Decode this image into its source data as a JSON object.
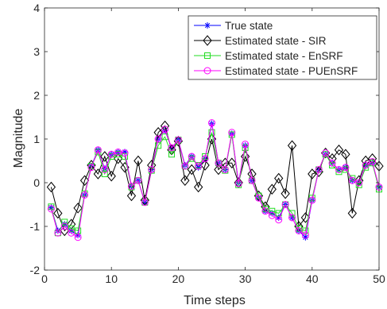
{
  "chart_data": {
    "type": "line",
    "xlabel": "Time steps",
    "ylabel": "Magnitude",
    "xlim": [
      0,
      50
    ],
    "ylim": [
      -2,
      4
    ],
    "xticks": [
      0,
      10,
      20,
      30,
      40,
      50
    ],
    "yticks": [
      -2,
      -1,
      0,
      1,
      2,
      3,
      4
    ],
    "grid": false,
    "legend_position": "top-right",
    "x": [
      1,
      2,
      3,
      4,
      5,
      6,
      7,
      8,
      9,
      10,
      11,
      12,
      13,
      14,
      15,
      16,
      17,
      18,
      19,
      20,
      21,
      22,
      23,
      24,
      25,
      26,
      27,
      28,
      29,
      30,
      31,
      32,
      33,
      34,
      35,
      36,
      37,
      38,
      39,
      40,
      41,
      42,
      43,
      44,
      45,
      46,
      47,
      48,
      49,
      50
    ],
    "series": [
      {
        "name": "True state",
        "color": "#0000ff",
        "marker": "asterisk",
        "values": [
          -0.57,
          -1.1,
          -0.95,
          -1.1,
          -1.2,
          -0.28,
          0.38,
          0.75,
          0.32,
          0.65,
          0.7,
          0.7,
          -0.08,
          0.05,
          -0.45,
          0.3,
          1.0,
          1.2,
          0.8,
          0.98,
          0.4,
          0.6,
          0.35,
          0.55,
          1.35,
          0.45,
          0.3,
          1.12,
          0.0,
          0.85,
          0.05,
          -0.35,
          -0.65,
          -0.7,
          -0.8,
          -0.5,
          -0.8,
          -1.1,
          -1.25,
          -0.4,
          0.3,
          0.65,
          0.45,
          0.3,
          0.35,
          0.05,
          0.0,
          0.4,
          0.45,
          -0.1
        ]
      },
      {
        "name": "Estimated state - SIR",
        "color": "#000000",
        "marker": "diamond",
        "values": [
          -0.1,
          -0.7,
          -1.1,
          -0.95,
          -0.58,
          0.05,
          0.4,
          0.2,
          0.6,
          0.15,
          0.55,
          0.35,
          -0.3,
          0.5,
          -0.4,
          0.4,
          1.15,
          1.3,
          0.75,
          0.95,
          0.05,
          0.3,
          -0.1,
          0.4,
          1.0,
          0.3,
          0.45,
          0.45,
          0.0,
          0.6,
          0.2,
          -0.3,
          -0.55,
          -0.15,
          0.1,
          -0.25,
          0.85,
          -1.0,
          -0.8,
          0.2,
          0.25,
          0.68,
          0.55,
          0.75,
          0.65,
          -0.7,
          0.05,
          0.5,
          0.55,
          0.38
        ]
      },
      {
        "name": "Estimated state - EnSRF",
        "color": "#22dd22",
        "marker": "square",
        "values": [
          -0.55,
          -1.15,
          -0.9,
          -1.05,
          -1.1,
          -0.25,
          0.38,
          0.7,
          0.2,
          0.6,
          0.65,
          0.6,
          -0.1,
          0.05,
          -0.45,
          0.28,
          0.85,
          1.05,
          0.65,
          0.98,
          0.38,
          0.55,
          0.4,
          0.6,
          1.15,
          0.45,
          0.28,
          1.1,
          -0.05,
          0.8,
          0.05,
          -0.3,
          -0.6,
          -0.65,
          -0.7,
          -0.5,
          -0.7,
          -1.05,
          -1.1,
          -0.35,
          0.3,
          0.65,
          0.4,
          0.25,
          0.3,
          0.1,
          -0.05,
          0.35,
          0.45,
          -0.15
        ]
      },
      {
        "name": "Estimated state - PUEnSRF",
        "color": "#ff00ff",
        "marker": "circle",
        "values": [
          -0.6,
          -1.15,
          -1.0,
          -1.15,
          -1.25,
          -0.28,
          0.35,
          0.75,
          0.3,
          0.65,
          0.7,
          0.68,
          -0.08,
          0.05,
          -0.45,
          0.3,
          1.0,
          1.22,
          0.8,
          0.98,
          0.38,
          0.6,
          0.38,
          0.55,
          1.37,
          0.45,
          0.3,
          1.15,
          -0.02,
          0.88,
          0.05,
          -0.35,
          -0.65,
          -0.75,
          -0.85,
          -0.5,
          -0.8,
          -1.1,
          -1.2,
          -0.4,
          0.3,
          0.68,
          0.45,
          0.3,
          0.35,
          0.05,
          0.0,
          0.4,
          0.48,
          -0.1
        ]
      }
    ]
  }
}
